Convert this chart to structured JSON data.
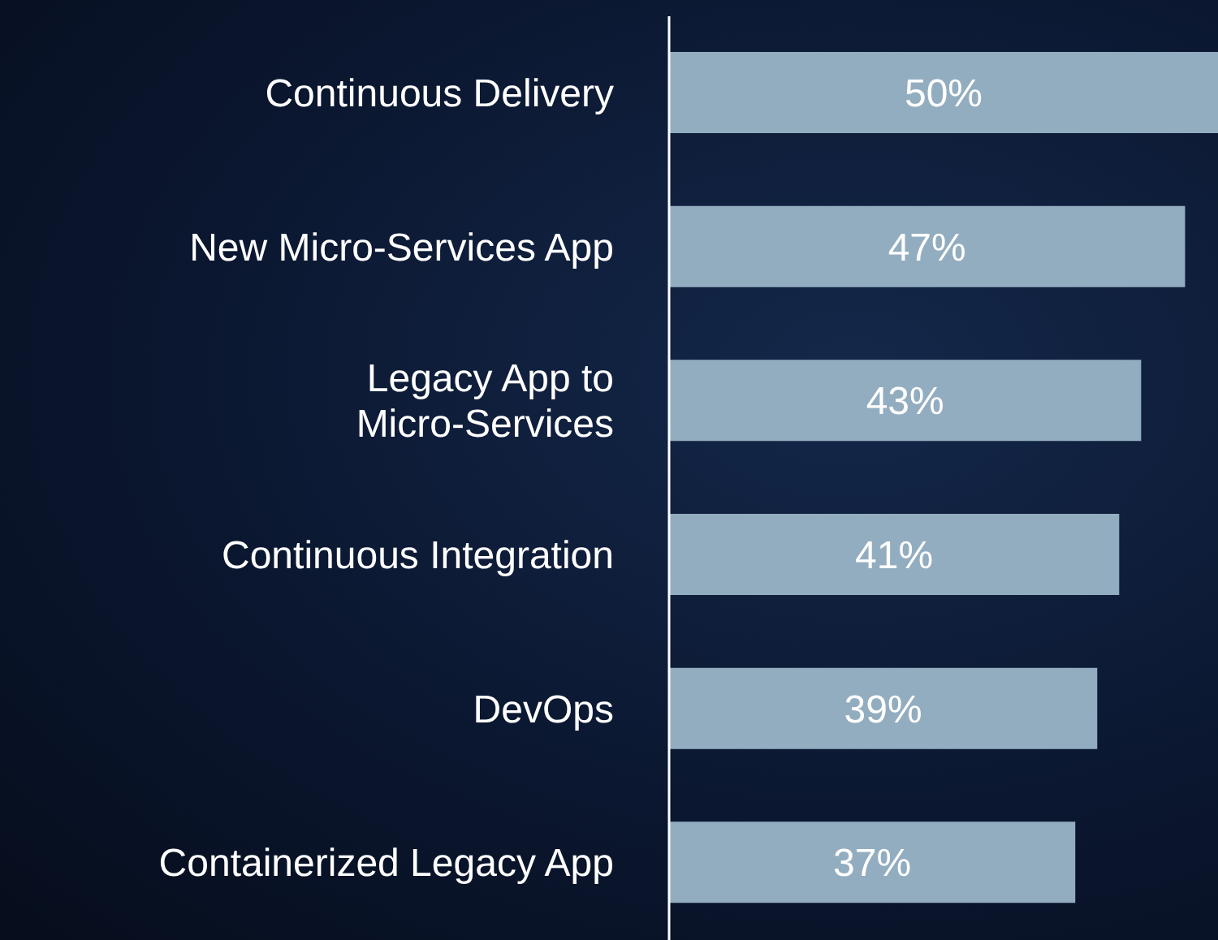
{
  "chart_data": {
    "type": "bar",
    "orientation": "horizontal",
    "categories": [
      "Continuous Delivery",
      "New Micro-Services App",
      "Legacy App to\nMicro-Services",
      "Continuous Integration",
      "DevOps",
      "Containerized Legacy App"
    ],
    "values": [
      50,
      47,
      43,
      41,
      39,
      37
    ],
    "value_labels": [
      "50%",
      "47%",
      "43%",
      "41%",
      "39%",
      "37%"
    ],
    "color": "#93adc0",
    "xlim": [
      0,
      50
    ],
    "tick_labels": "y",
    "grid": false,
    "legend": false
  }
}
